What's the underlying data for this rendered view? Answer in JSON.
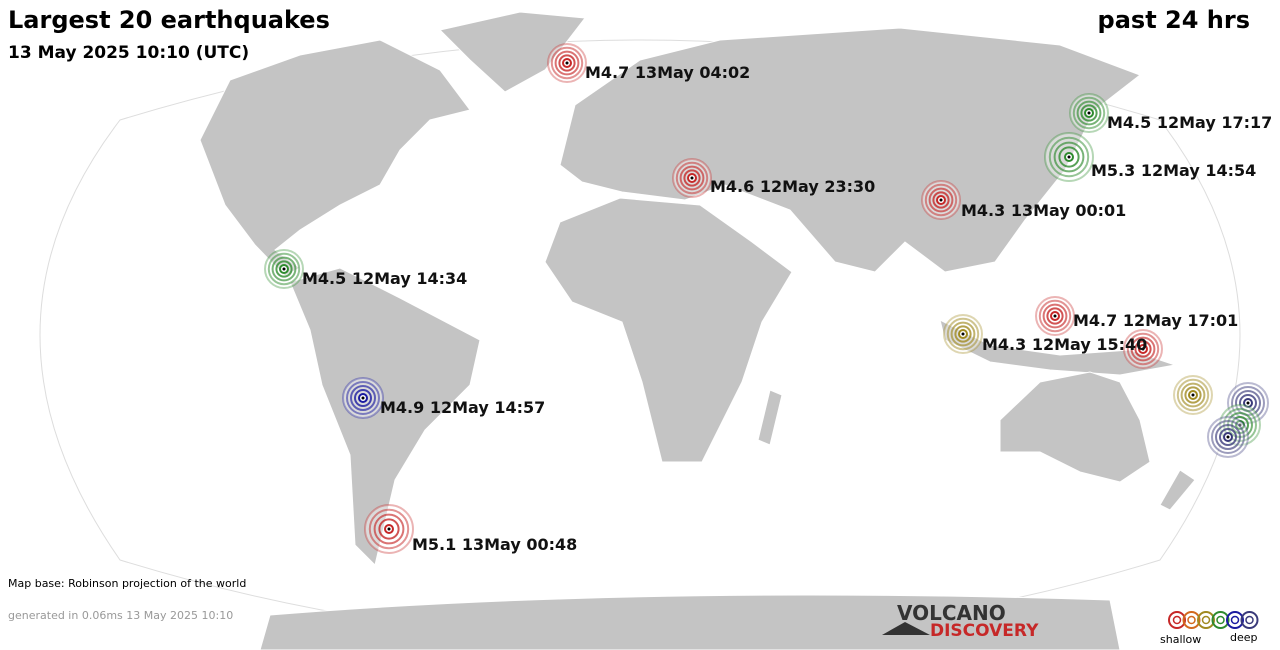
{
  "header": {
    "title": "Largest 20 earthquakes",
    "subtitle": "13 May 2025 10:10 (UTC)",
    "period": "past 24 hrs"
  },
  "quake_labels": [
    "M4.7 13May 04:02",
    "M4.5 12May 17:17",
    "M5.3 12May 14:54",
    "M4.6 12May 23:30",
    "M4.3 13May 00:01",
    "M4.5 12May 14:34",
    "M4.7 12May 17:01",
    "M4.3 12May 15:40",
    "M4.9 12May 14:57",
    "M5.1 13May 00:48"
  ],
  "footer": {
    "map_base": "Map base: Robinson projection of the world",
    "generated": "generated in 0.06ms 13 May 2025 10:10"
  },
  "logo": {
    "line1": "VOLCANO",
    "line2": "DISCOVERY"
  },
  "legend": {
    "shallow": "shallow",
    "deep": "deep"
  }
}
